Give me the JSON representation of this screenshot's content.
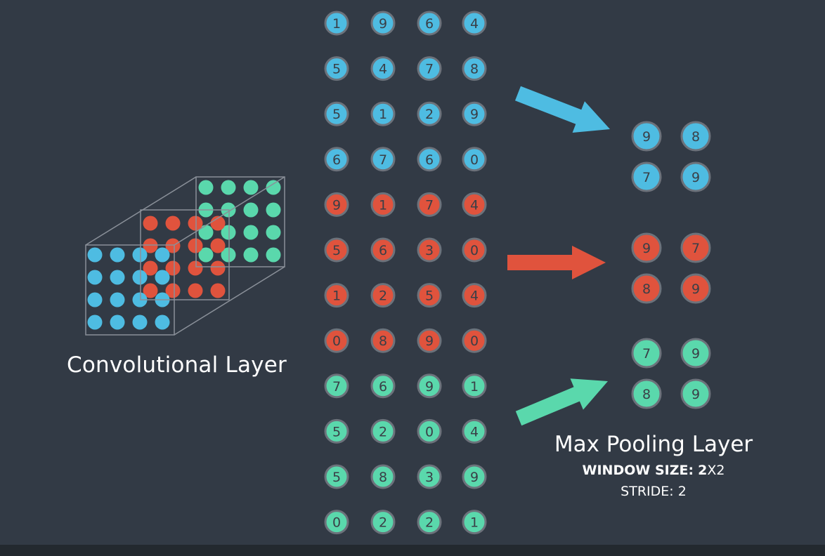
{
  "colors": {
    "background": "#323a45",
    "bottom_bar": "#23292f",
    "blue": "#4ebce2",
    "red": "#e0533d",
    "green": "#5ad8ac",
    "node_border": "#6c727b",
    "node_text": "#3a3f47",
    "box_line": "#8a9099"
  },
  "labels": {
    "convolutional_layer": "Convolutional Layer",
    "max_pooling_layer": "Max Pooling Layer",
    "window_size_key": "WINDOW SIZE:",
    "window_size_bold": "2",
    "window_size_rest": "X2",
    "stride": "STRIDE: 2"
  },
  "input_column": {
    "blue": [
      [
        1,
        9,
        6,
        4
      ],
      [
        5,
        4,
        7,
        8
      ],
      [
        5,
        1,
        2,
        9
      ],
      [
        6,
        7,
        6,
        0
      ]
    ],
    "red": [
      [
        9,
        1,
        7,
        4
      ],
      [
        5,
        6,
        3,
        0
      ],
      [
        1,
        2,
        5,
        4
      ],
      [
        0,
        8,
        9,
        0
      ]
    ],
    "green": [
      [
        7,
        6,
        9,
        1
      ],
      [
        5,
        2,
        0,
        4
      ],
      [
        5,
        8,
        3,
        9
      ],
      [
        0,
        2,
        2,
        1
      ]
    ]
  },
  "pooled_output": {
    "blue": [
      [
        9,
        8
      ],
      [
        7,
        9
      ]
    ],
    "red": [
      [
        9,
        7
      ],
      [
        8,
        9
      ]
    ],
    "green": [
      [
        7,
        9
      ],
      [
        8,
        9
      ]
    ]
  },
  "arrow_icons": [
    "arrow-blue-icon",
    "arrow-red-icon",
    "arrow-green-icon"
  ]
}
